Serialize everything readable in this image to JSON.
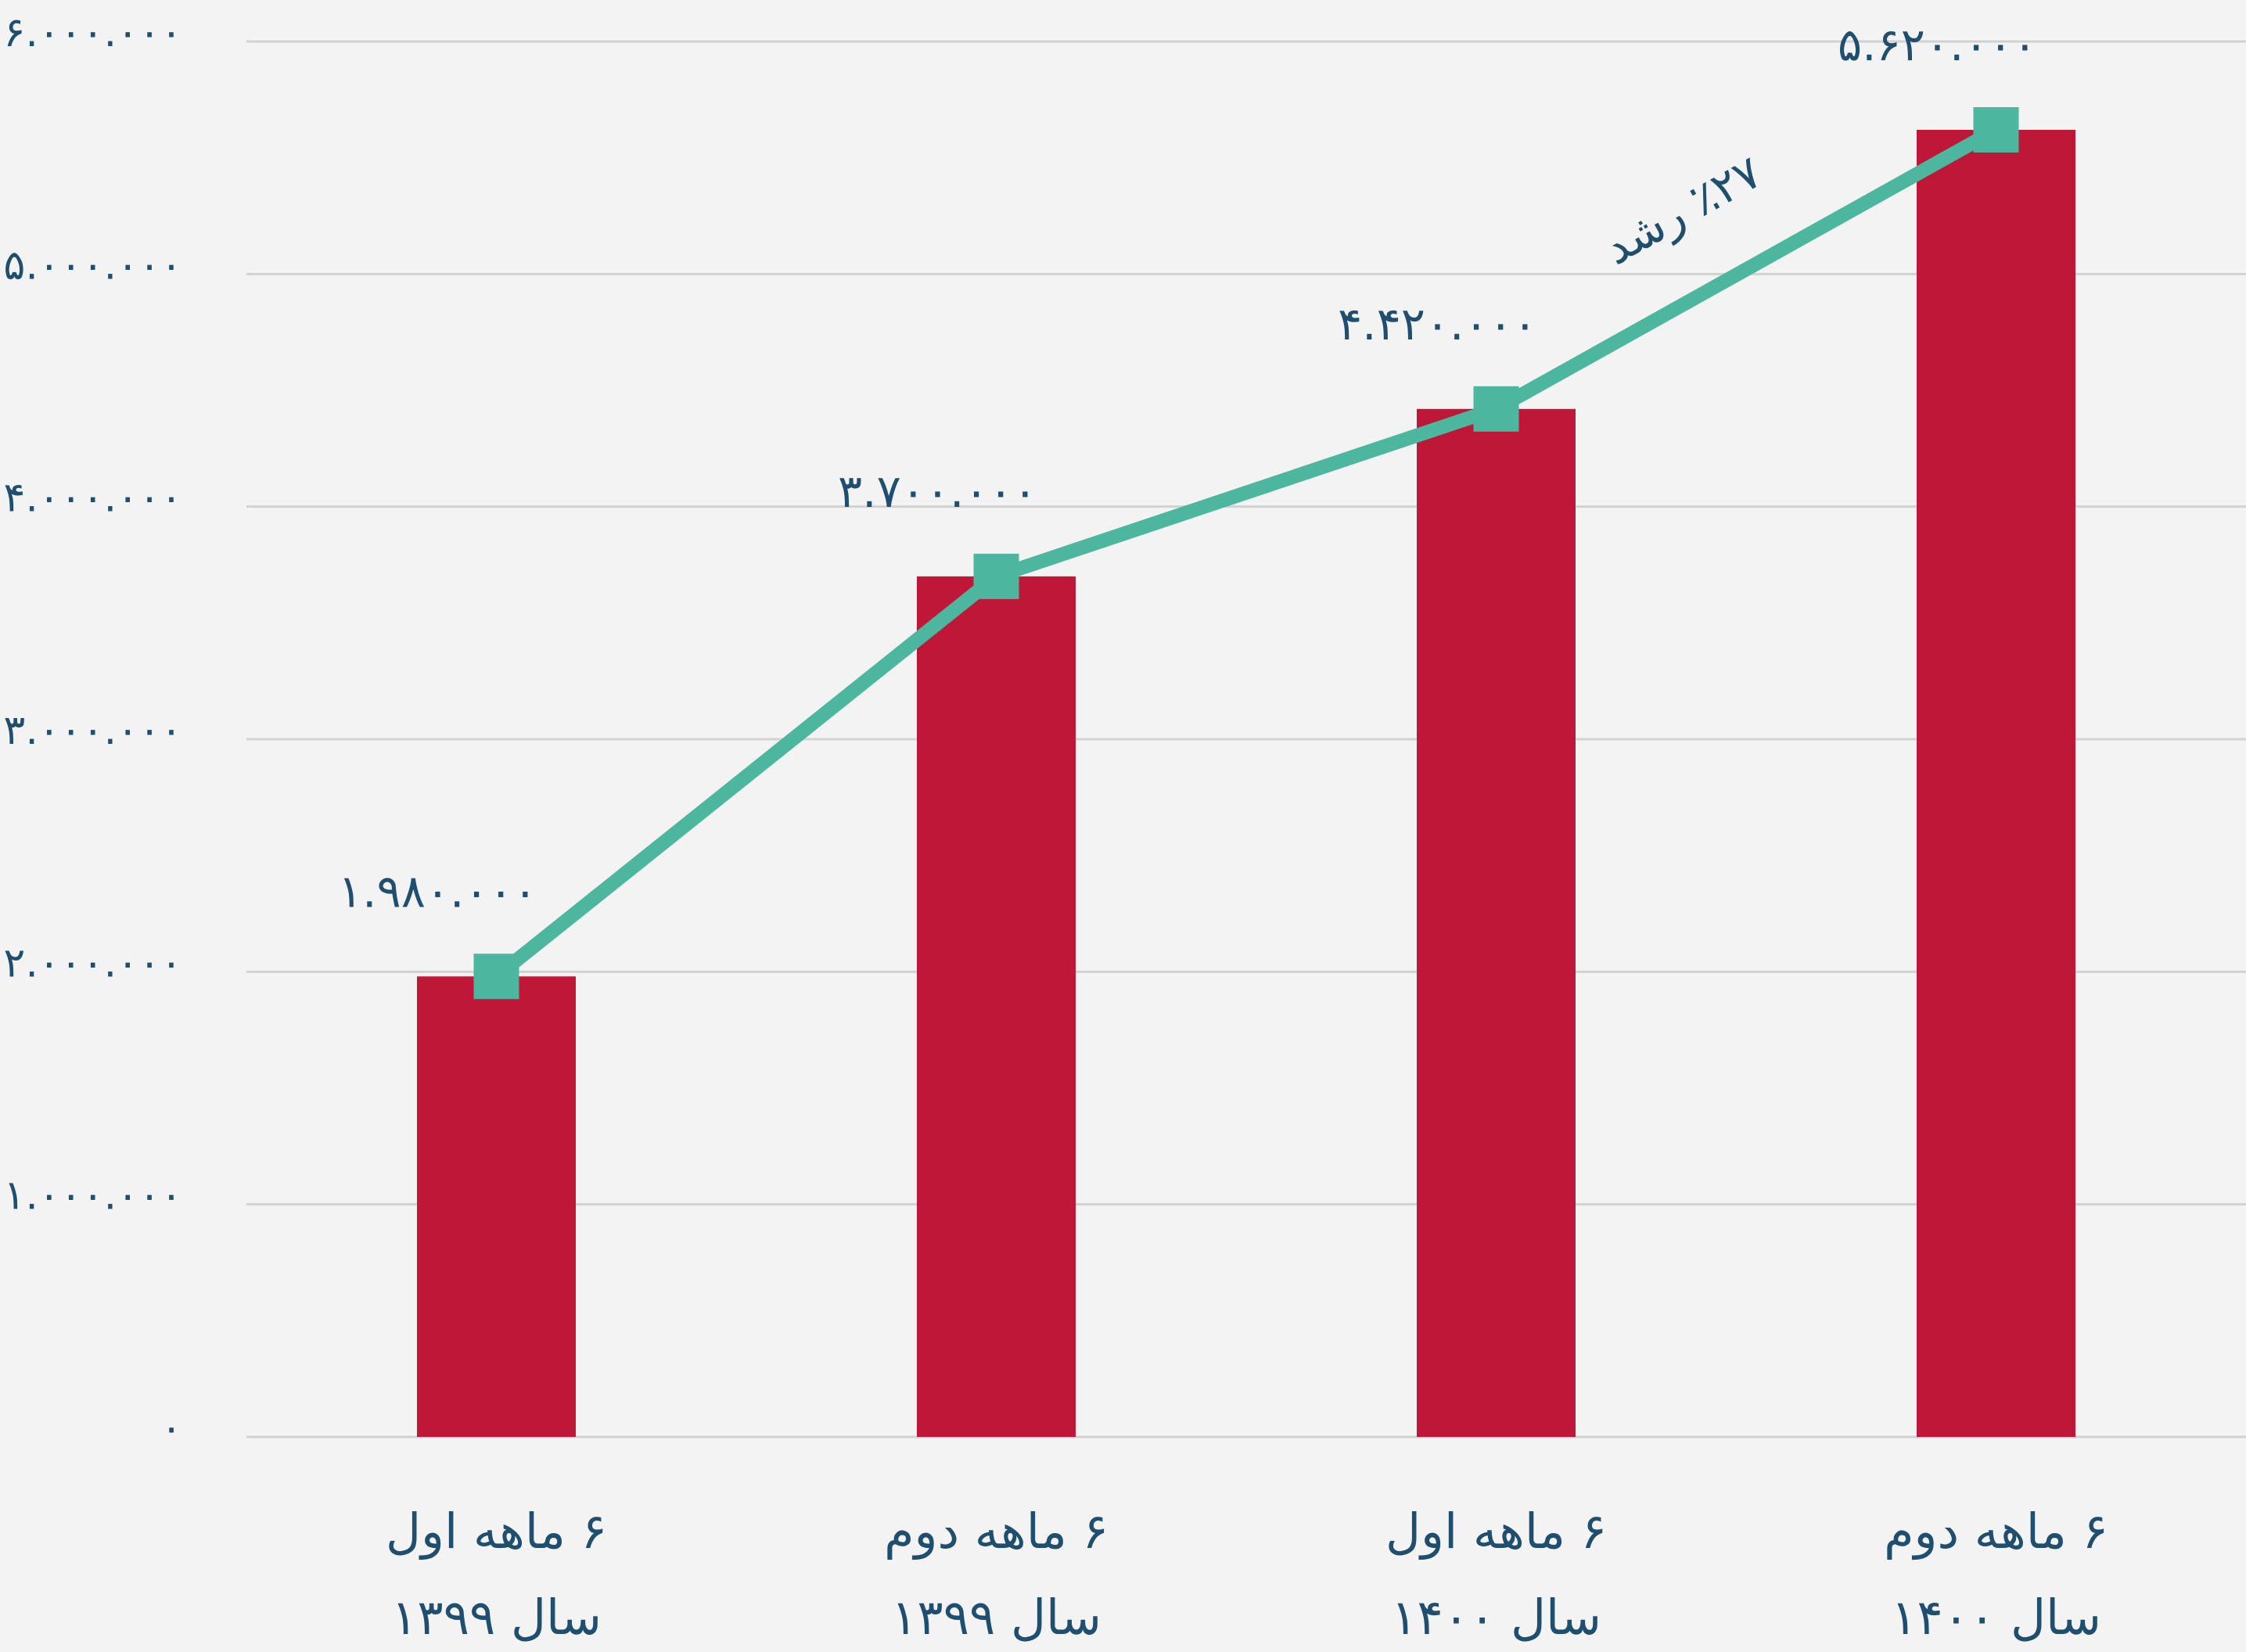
{
  "chart_data": {
    "type": "bar_line",
    "categories": [
      [
        "۶ ماهه اول",
        "سال ۱۳۹۹"
      ],
      [
        "۶ ماهه دوم",
        "سال ۱۳۹۹"
      ],
      [
        "۶ ماهه اول",
        "سال ۱۴۰۰"
      ],
      [
        "۶ ماهه دوم",
        "سال ۱۴۰۰"
      ]
    ],
    "series": [
      {
        "type": "bar",
        "color": "#be1737",
        "values": [
          1980000,
          3700000,
          4420000,
          5620000
        ]
      },
      {
        "type": "line",
        "color": "#4cb69f",
        "values": [
          1980000,
          3700000,
          4420000,
          5620000
        ],
        "value_labels": [
          "۱.۹۸۰.۰۰۰",
          "۳.۷۰۰.۰۰۰",
          "۴.۴۲۰.۰۰۰",
          "۵.۶۲۰.۰۰۰"
        ]
      }
    ],
    "annotation": "٪۲۷ رشد",
    "ylim": [
      0,
      6000000
    ],
    "yticks": [
      {
        "value": 0,
        "label": "۰"
      },
      {
        "value": 1000000,
        "label": "۱.۰۰۰.۰۰۰"
      },
      {
        "value": 2000000,
        "label": "۲.۰۰۰.۰۰۰"
      },
      {
        "value": 3000000,
        "label": "۳.۰۰۰.۰۰۰"
      },
      {
        "value": 4000000,
        "label": "۴.۰۰۰.۰۰۰"
      },
      {
        "value": 5000000,
        "label": "۵.۰۰۰.۰۰۰"
      },
      {
        "value": 6000000,
        "label": "۶.۰۰۰.۰۰۰"
      }
    ],
    "grid": true
  }
}
